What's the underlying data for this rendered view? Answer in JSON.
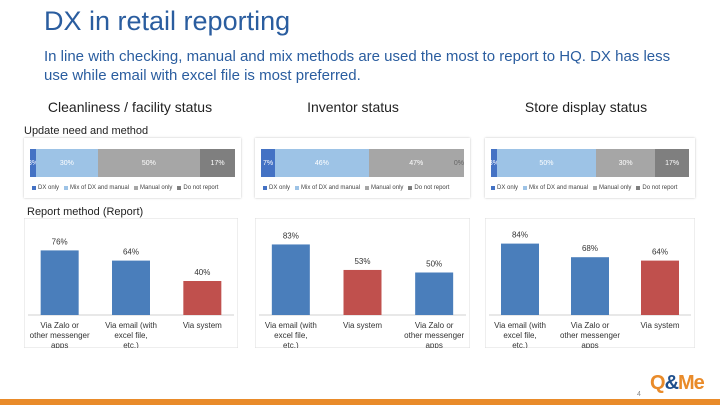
{
  "slide": {
    "title": "DX in retail reporting",
    "subtitle": "In line with checking, manual and mix methods are used the most to report to HQ. DX has less use while email with excel file is most preferred.",
    "section_update": "Update need and method",
    "section_report": "Report method (Report)",
    "page_number": "4",
    "logo_text": "Q&Me"
  },
  "colors": {
    "dx_only": "#4472c4",
    "mix": "#9dc3e6",
    "manual": "#a6a6a6",
    "no_report": "#7f7f7f",
    "bar_blue": "#4a7ebb",
    "bar_red": "#c0504d"
  },
  "legend": [
    "DX only",
    "Mix of DX and manual",
    "Manual only",
    "Do not report"
  ],
  "chart_data": [
    {
      "type": "bar",
      "stacked": true,
      "orientation": "horizontal",
      "title": "Cleanliness / facility status",
      "series": [
        {
          "name": "DX only",
          "values": [
            3
          ],
          "label": "3%"
        },
        {
          "name": "Mix of DX and manual",
          "values": [
            30
          ],
          "label": "30%"
        },
        {
          "name": "Manual only",
          "values": [
            50
          ],
          "label": "50%"
        },
        {
          "name": "Do not report",
          "values": [
            17
          ],
          "label": "17%"
        }
      ]
    },
    {
      "type": "bar",
      "stacked": true,
      "orientation": "horizontal",
      "title": "Inventor status",
      "series": [
        {
          "name": "DX only",
          "values": [
            7
          ],
          "label": "7%"
        },
        {
          "name": "Mix of DX and manual",
          "values": [
            46
          ],
          "label": "46%"
        },
        {
          "name": "Manual only",
          "values": [
            47
          ],
          "label": "47%"
        },
        {
          "name": "Do not report",
          "values": [
            0
          ],
          "label": "0%"
        }
      ]
    },
    {
      "type": "bar",
      "stacked": true,
      "orientation": "horizontal",
      "title": "Store display status",
      "series": [
        {
          "name": "DX only",
          "values": [
            3
          ],
          "label": "3%"
        },
        {
          "name": "Mix of DX and manual",
          "values": [
            50
          ],
          "label": "50%"
        },
        {
          "name": "Manual only",
          "values": [
            30
          ],
          "label": "30%"
        },
        {
          "name": "Do not report",
          "values": [
            17
          ],
          "label": "17%"
        }
      ]
    },
    {
      "type": "bar",
      "title": "Report method (Report) - Cleanliness / facility status",
      "categories": [
        "Via Zalo or other messenger apps",
        "Via email (with excel file, etc.)",
        "Via system"
      ],
      "values": [
        76,
        64,
        40
      ],
      "labels": [
        "76%",
        "64%",
        "40%"
      ],
      "colors": [
        "blue",
        "blue",
        "red"
      ],
      "ylim": [
        0,
        100
      ]
    },
    {
      "type": "bar",
      "title": "Report method (Report) - Inventor status",
      "categories": [
        "Via email (with excel file, etc.)",
        "Via system",
        "Via Zalo or other messenger apps"
      ],
      "values": [
        83,
        53,
        50
      ],
      "labels": [
        "83%",
        "53%",
        "50%"
      ],
      "colors": [
        "blue",
        "red",
        "blue"
      ],
      "ylim": [
        0,
        100
      ]
    },
    {
      "type": "bar",
      "title": "Report method (Report) - Store display status",
      "categories": [
        "Via email (with excel file, etc.)",
        "Via Zalo or other messenger apps",
        "Via system"
      ],
      "values": [
        84,
        68,
        64
      ],
      "labels": [
        "84%",
        "68%",
        "64%"
      ],
      "colors": [
        "blue",
        "blue",
        "red"
      ],
      "ylim": [
        0,
        100
      ]
    }
  ]
}
